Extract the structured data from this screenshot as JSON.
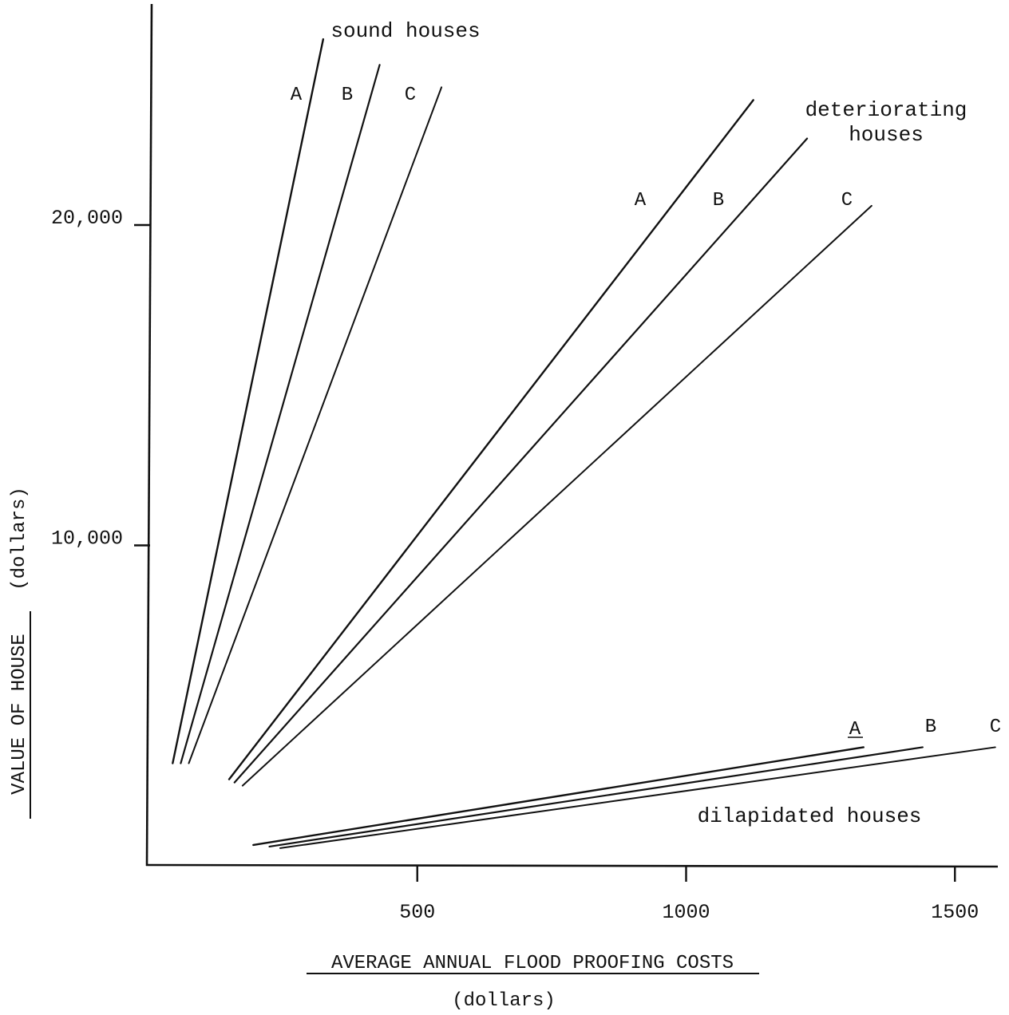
{
  "chart_data": {
    "type": "line",
    "title": "",
    "xlabel": "AVERAGE ANNUAL FLOOD PROOFING COSTS",
    "xlabel_unit": "(dollars)",
    "ylabel": "VALUE OF HOUSE",
    "ylabel_unit": "(dollars)",
    "xlim": [
      0,
      1580
    ],
    "ylim": [
      0,
      26500
    ],
    "x_ticks": [
      500,
      1000,
      1500
    ],
    "x_tick_labels": [
      "500",
      "1000",
      "1500"
    ],
    "y_ticks": [
      10000,
      20000
    ],
    "y_tick_labels": [
      "10,000",
      "20,000"
    ],
    "grid": false,
    "legend": "none",
    "groups": [
      {
        "label": "sound houses",
        "series": [
          {
            "name": "A",
            "x": [
              45,
              325
            ],
            "y": [
              3200,
              25800
            ]
          },
          {
            "name": "B",
            "x": [
              60,
              430
            ],
            "y": [
              3200,
              25000
            ]
          },
          {
            "name": "C",
            "x": [
              75,
              545
            ],
            "y": [
              3200,
              24300
            ]
          }
        ]
      },
      {
        "label": "deteriorating houses",
        "series": [
          {
            "name": "A",
            "x": [
              150,
              1125
            ],
            "y": [
              2700,
              23900
            ]
          },
          {
            "name": "B",
            "x": [
              160,
              1225
            ],
            "y": [
              2600,
              22700
            ]
          },
          {
            "name": "C",
            "x": [
              175,
              1345
            ],
            "y": [
              2500,
              20600
            ]
          }
        ]
      },
      {
        "label": "dilapidated houses",
        "series": [
          {
            "name": "A",
            "x": [
              195,
              1330
            ],
            "y": [
              650,
              3700
            ]
          },
          {
            "name": "B",
            "x": [
              225,
              1440
            ],
            "y": [
              600,
              3700
            ]
          },
          {
            "name": "C",
            "x": [
              245,
              1575
            ],
            "y": [
              550,
              3700
            ]
          }
        ]
      }
    ]
  }
}
